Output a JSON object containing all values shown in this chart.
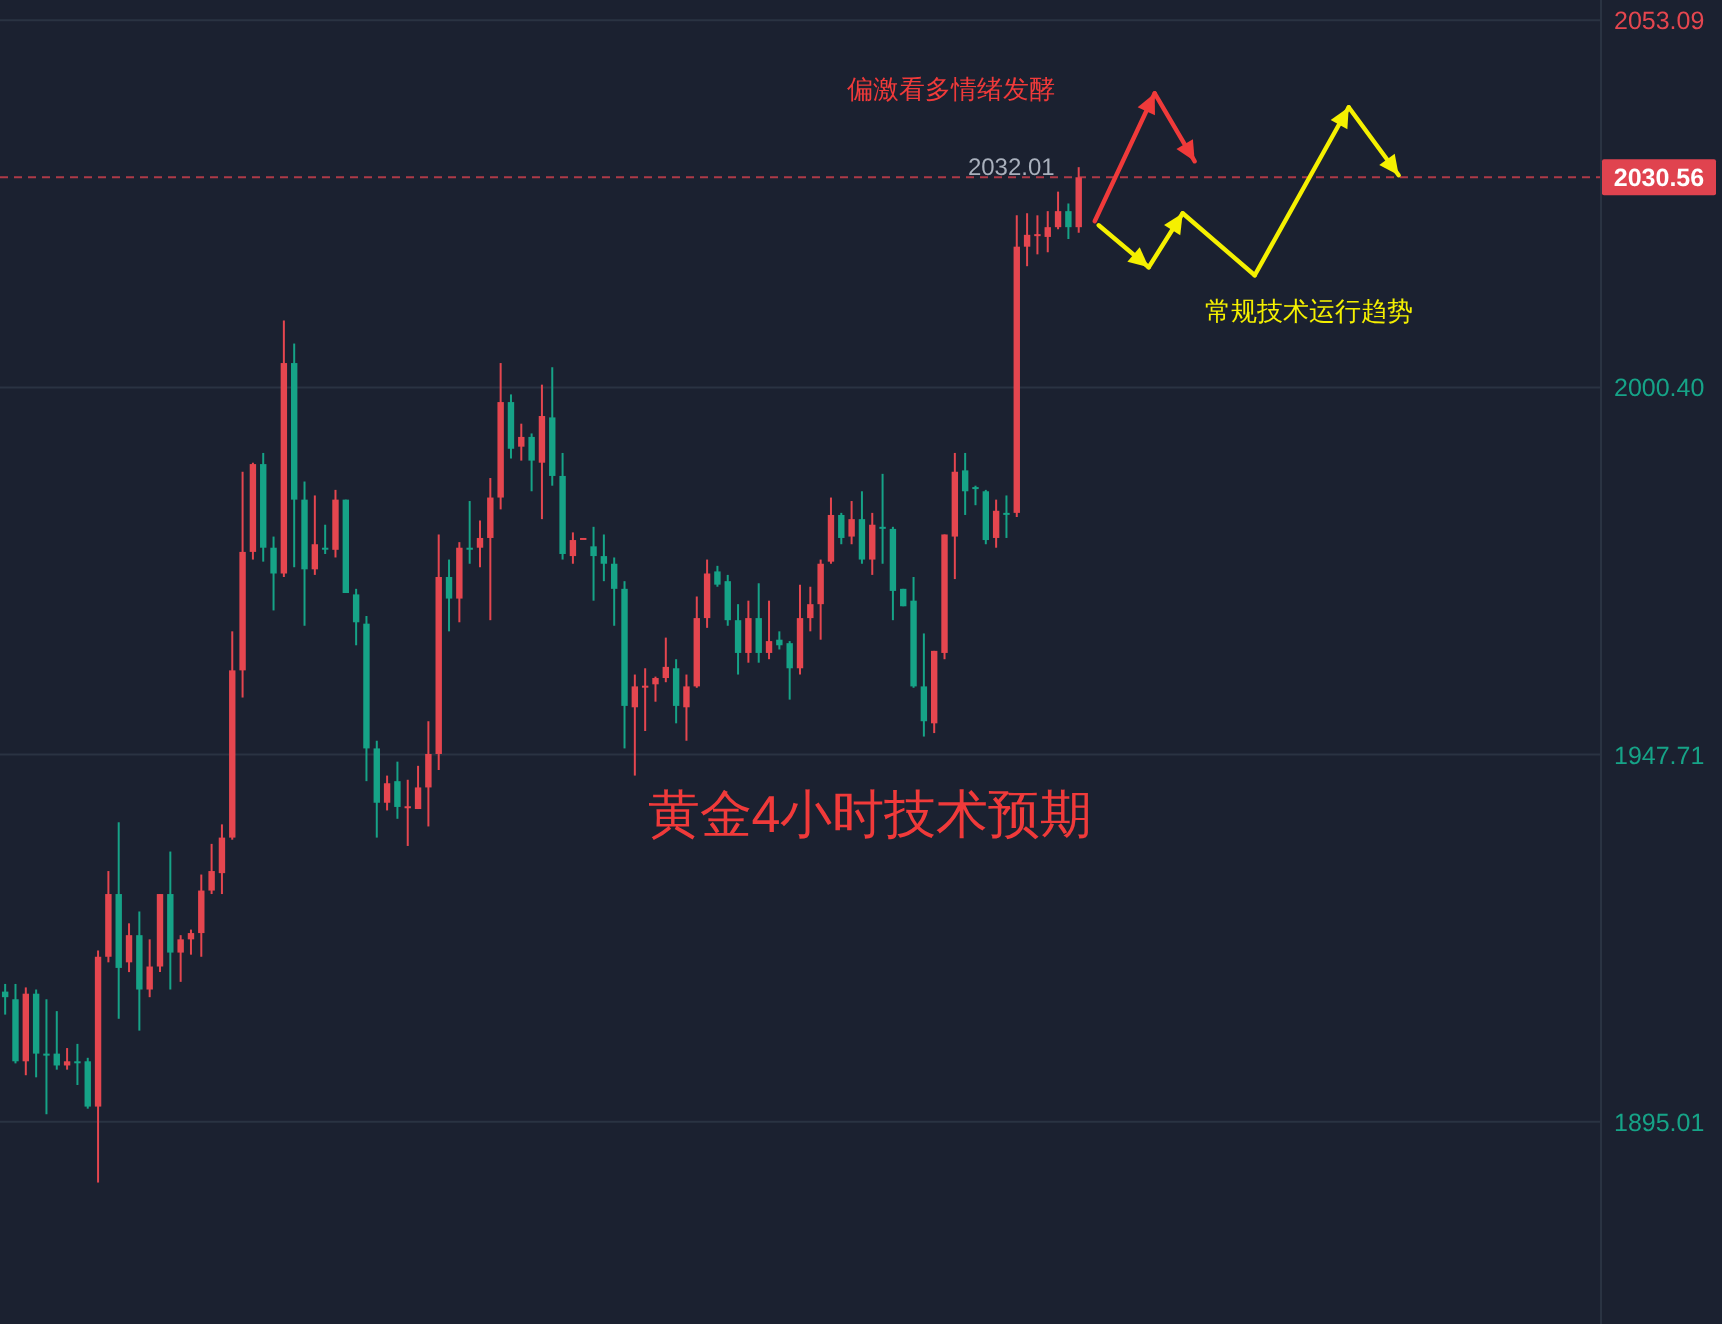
{
  "chart_data": {
    "type": "candlestick",
    "categories": [
      null,
      null,
      null,
      null,
      null,
      null,
      null,
      null,
      null,
      null,
      null,
      null,
      null,
      null,
      null,
      null,
      null,
      null,
      null,
      null,
      null,
      null,
      null,
      null,
      null,
      null,
      null,
      null,
      null,
      null,
      null,
      null,
      null,
      null,
      null,
      null,
      null,
      null,
      null,
      null,
      null,
      null,
      null,
      null,
      null,
      null,
      null,
      null,
      null,
      null,
      null,
      null,
      null,
      null,
      null,
      null,
      null,
      null,
      null,
      null,
      null,
      null,
      null,
      null,
      null,
      null,
      null,
      null,
      null,
      null,
      null,
      null,
      null,
      null,
      null,
      null,
      null,
      null,
      null,
      null,
      null,
      null,
      null,
      null,
      null,
      null,
      null,
      null,
      null,
      null,
      null,
      null,
      null,
      null,
      null,
      null,
      null,
      null,
      null,
      null,
      null,
      null,
      null,
      null,
      null,
      null,
      null,
      null,
      null,
      null,
      null,
      null,
      null,
      null,
      null,
      null,
      null,
      null,
      null,
      null,
      null,
      null,
      null,
      null,
      null,
      null,
      null,
      null,
      null,
      null,
      null,
      null,
      null,
      null,
      null,
      null,
      null,
      null,
      null,
      null,
      null,
      null,
      null,
      null,
      null,
      null,
      null,
      null,
      null,
      null,
      null,
      null,
      null,
      null,
      null
    ],
    "ohlc": [
      [
        1913.7,
        1914.8,
        1910.4,
        1912.9
      ],
      [
        1912.6,
        1914.8,
        1903.4,
        1903.7
      ],
      [
        1903.7,
        1914.3,
        1901.7,
        1913.4
      ],
      [
        1913.4,
        1914.0,
        1901.4,
        1904.8
      ],
      [
        1904.8,
        1912.6,
        1896.1,
        1904.7
      ],
      [
        1904.8,
        1910.9,
        1902.5,
        1903.1
      ],
      [
        1903.1,
        1905.6,
        1902.5,
        1903.7
      ],
      [
        1903.7,
        1906.2,
        1900.3,
        1903.6
      ],
      [
        1903.7,
        1904.2,
        1896.9,
        1897.2
      ],
      [
        1897.2,
        1919.6,
        1886.3,
        1918.7
      ],
      [
        1918.7,
        1931.0,
        1917.9,
        1927.7
      ],
      [
        1927.7,
        1938.0,
        1909.8,
        1917.1
      ],
      [
        1917.9,
        1923.5,
        1916.5,
        1921.8
      ],
      [
        1921.8,
        1925.2,
        1908.1,
        1914.0
      ],
      [
        1914.0,
        1921.2,
        1912.9,
        1917.3
      ],
      [
        1917.3,
        1927.7,
        1916.5,
        1927.7
      ],
      [
        1927.7,
        1933.8,
        1914.0,
        1919.3
      ],
      [
        1919.3,
        1921.8,
        1915.1,
        1921.2
      ],
      [
        1921.2,
        1922.6,
        1919.0,
        1922.1
      ],
      [
        1922.1,
        1930.5,
        1918.7,
        1928.2
      ],
      [
        1928.2,
        1934.9,
        1927.7,
        1931.0
      ],
      [
        1930.7,
        1937.7,
        1927.7,
        1935.8
      ],
      [
        1935.8,
        1965.4,
        1935.5,
        1959.8
      ],
      [
        1959.8,
        1988.3,
        1955.9,
        1976.8
      ],
      [
        1976.8,
        1989.6,
        1975.7,
        1989.4
      ],
      [
        1989.4,
        1991.0,
        1975.4,
        1977.4
      ],
      [
        1977.4,
        1979.0,
        1968.4,
        1973.7
      ],
      [
        1973.7,
        2010.0,
        1973.2,
        2003.9
      ],
      [
        2003.9,
        2006.7,
        1974.6,
        1984.3
      ],
      [
        1984.3,
        1986.9,
        1966.2,
        1974.3
      ],
      [
        1974.3,
        1984.9,
        1973.5,
        1977.9
      ],
      [
        1977.4,
        1980.7,
        1976.5,
        1977.3
      ],
      [
        1977.1,
        1985.7,
        1976.0,
        1984.3
      ],
      [
        1984.3,
        1984.3,
        1970.9,
        1970.9
      ],
      [
        1970.7,
        1971.5,
        1963.4,
        1966.7
      ],
      [
        1966.5,
        1967.6,
        1943.9,
        1948.6
      ],
      [
        1948.6,
        1949.7,
        1935.8,
        1940.8
      ],
      [
        1940.8,
        1944.7,
        1939.7,
        1943.6
      ],
      [
        1943.9,
        1946.7,
        1938.5,
        1940.2
      ],
      [
        1940.2,
        1944.1,
        1934.6,
        1940.3
      ],
      [
        1939.9,
        1946.1,
        1939.9,
        1943.0
      ],
      [
        1943.0,
        1952.5,
        1937.4,
        1947.8
      ],
      [
        1947.8,
        1979.3,
        1945.5,
        1973.2
      ],
      [
        1973.2,
        1975.7,
        1965.4,
        1970.1
      ],
      [
        1970.1,
        1978.2,
        1966.7,
        1977.4
      ],
      [
        1977.4,
        1984.1,
        1975.1,
        1977.3
      ],
      [
        1977.4,
        1981.3,
        1974.6,
        1978.8
      ],
      [
        1978.8,
        1987.4,
        1967.0,
        1984.6
      ],
      [
        1984.6,
        2003.9,
        1982.9,
        1998.3
      ],
      [
        1998.3,
        1999.4,
        1990.2,
        1991.6
      ],
      [
        1991.9,
        1995.2,
        1989.9,
        1993.3
      ],
      [
        1993.3,
        1993.8,
        1985.5,
        1989.9
      ],
      [
        1989.6,
        2000.8,
        1981.5,
        1996.3
      ],
      [
        1996.1,
        2003.3,
        1986.3,
        1987.7
      ],
      [
        1987.7,
        1991.0,
        1975.7,
        1976.5
      ],
      [
        1976.2,
        1979.6,
        1975.1,
        1978.5
      ],
      [
        1978.7,
        1978.8,
        1978.7,
        1978.8
      ],
      [
        1977.6,
        1980.4,
        1969.8,
        1976.2
      ],
      [
        1976.2,
        1979.3,
        1972.6,
        1975.1
      ],
      [
        1975.1,
        1976.0,
        1966.2,
        1971.5
      ],
      [
        1971.5,
        1972.6,
        1948.6,
        1954.7
      ],
      [
        1954.5,
        1959.2,
        1944.7,
        1957.5
      ],
      [
        1957.5,
        1960.1,
        1951.1,
        1957.6
      ],
      [
        1957.8,
        1958.9,
        1955.3,
        1958.7
      ],
      [
        1958.7,
        1964.5,
        1958.1,
        1960.3
      ],
      [
        1960.1,
        1961.4,
        1952.2,
        1954.7
      ],
      [
        1954.5,
        1959.2,
        1949.7,
        1957.5
      ],
      [
        1957.5,
        1970.4,
        1957.3,
        1967.3
      ],
      [
        1967.3,
        1975.7,
        1965.9,
        1973.7
      ],
      [
        1974.0,
        1974.8,
        1971.8,
        1972.1
      ],
      [
        1972.6,
        1973.5,
        1966.2,
        1967.0
      ],
      [
        1967.0,
        1969.3,
        1959.2,
        1962.3
      ],
      [
        1962.3,
        1969.8,
        1960.9,
        1967.3
      ],
      [
        1967.3,
        1972.3,
        1960.9,
        1962.3
      ],
      [
        1962.3,
        1969.8,
        1961.4,
        1964.0
      ],
      [
        1964.2,
        1965.4,
        1962.8,
        1963.4
      ],
      [
        1963.7,
        1964.0,
        1955.6,
        1960.1
      ],
      [
        1960.1,
        1972.1,
        1959.2,
        1967.3
      ],
      [
        1967.3,
        1971.8,
        1965.4,
        1969.3
      ],
      [
        1969.3,
        1975.7,
        1964.2,
        1975.1
      ],
      [
        1975.4,
        1984.6,
        1975.1,
        1982.1
      ],
      [
        1982.1,
        1982.4,
        1977.9,
        1978.8
      ],
      [
        1979.0,
        1984.1,
        1977.9,
        1981.5
      ],
      [
        1981.5,
        1985.5,
        1975.1,
        1975.7
      ],
      [
        1975.7,
        1982.4,
        1973.5,
        1980.7
      ],
      [
        1980.4,
        1988.0,
        1975.1,
        1980.3
      ],
      [
        1980.1,
        1980.4,
        1967.0,
        1971.2
      ],
      [
        1971.5,
        1971.5,
        1969.0,
        1969.0
      ],
      [
        1969.8,
        1973.2,
        1957.3,
        1957.5
      ],
      [
        1957.5,
        1965.1,
        1950.3,
        1952.5
      ],
      [
        1952.2,
        1962.6,
        1950.8,
        1962.6
      ],
      [
        1962.3,
        1979.3,
        1961.4,
        1979.3
      ],
      [
        1979.0,
        1991.0,
        1972.9,
        1988.3
      ],
      [
        1988.5,
        1991.0,
        1982.1,
        1985.5
      ],
      [
        1986.1,
        1986.3,
        1983.5,
        1986.0
      ],
      [
        1985.5,
        1985.7,
        1977.9,
        1978.5
      ],
      [
        1978.8,
        1984.3,
        1977.4,
        1982.7
      ],
      [
        1982.4,
        1984.9,
        1978.8,
        1982.3
      ],
      [
        1982.4,
        2025.1,
        1981.8,
        2020.6
      ],
      [
        2020.6,
        2025.4,
        2017.8,
        2022.3
      ],
      [
        2022.3,
        2025.1,
        2019.5,
        2022.4
      ],
      [
        2022.0,
        2025.7,
        2019.8,
        2023.4
      ],
      [
        2023.4,
        2028.5,
        2023.1,
        2025.7
      ],
      [
        2025.7,
        2026.8,
        2021.7,
        2023.4
      ],
      [
        2023.4,
        2032.01,
        2022.6,
        2030.56
      ],
      null,
      null,
      null,
      null,
      null,
      null,
      null,
      null,
      null,
      null,
      null,
      null,
      null,
      null,
      null,
      null,
      null,
      null,
      null,
      null,
      null,
      null,
      null,
      null,
      null,
      null,
      null,
      null,
      null,
      null,
      null,
      null,
      null,
      null,
      null,
      null,
      null,
      null,
      null,
      null,
      null,
      null,
      null,
      null,
      null,
      null,
      null,
      null,
      null,
      null
    ],
    "ylim": [
      1866,
      2056
    ],
    "yticks": [
      1895.01,
      {
        "value": 1947.71,
        "label": "1947.71"
      },
      {
        "value": 2000.4,
        "label": "2000.40"
      },
      2053.09
    ],
    "grid": "y",
    "tick_labels": "y",
    "ref_lines": [
      {
        "axis": "y",
        "value": 2030.56,
        "label": "2030.56",
        "color": "#e0434f",
        "line_style": "dashed"
      }
    ],
    "annotations": [
      "偏激看多情绪发酵",
      "常规技术运行趋势",
      "黄金4小时技术预期",
      "2032.01"
    ]
  }
}
